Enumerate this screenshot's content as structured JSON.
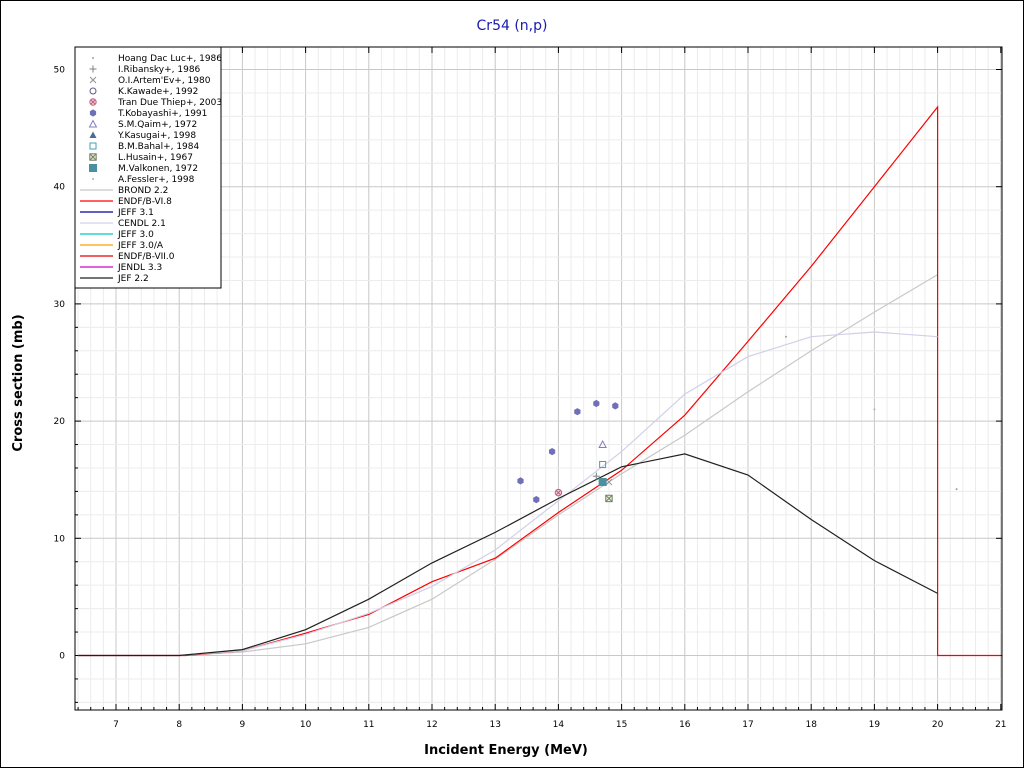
{
  "chart_data": {
    "type": "line",
    "title": "Cr54 (n,p)",
    "xlabel": "Incident Energy (MeV)",
    "ylabel": "Cross section (mb)",
    "xlim": [
      6.4,
      21
    ],
    "ylim": [
      -4.5,
      52
    ],
    "x_ticks": [
      7,
      8,
      9,
      10,
      11,
      12,
      13,
      14,
      15,
      16,
      17,
      18,
      19,
      20,
      21
    ],
    "y_ticks": [
      0,
      10,
      20,
      30,
      40,
      50
    ],
    "grid": true,
    "legend_position": "top-left",
    "experimental": [
      {
        "name": "Hoang Dac Luc+, 1986",
        "marker": "dot",
        "color": "#a0a0a0",
        "points": [
          [
            17.6,
            27.2
          ],
          [
            20.3,
            14.2
          ]
        ]
      },
      {
        "name": "I.Ribansky+, 1986",
        "marker": "plus",
        "color": "#808080",
        "points": [
          [
            14.6,
            15.3
          ]
        ]
      },
      {
        "name": "O.I.Artem'Ev+, 1980",
        "marker": "x",
        "color": "#909090",
        "points": [
          [
            14.8,
            14.8
          ]
        ]
      },
      {
        "name": "K.Kawade+, 1992",
        "marker": "circle-open",
        "color": "#5a5a8a",
        "points": [
          [
            14.0,
            13.9
          ]
        ]
      },
      {
        "name": "Tran Due Thiep+, 2003",
        "marker": "circle-x",
        "color": "#c06080",
        "points": [
          [
            14.0,
            13.9
          ]
        ]
      },
      {
        "name": "T.Kobayashi+, 1991",
        "marker": "hexagon-filled",
        "color": "#7070b8",
        "points": [
          [
            13.4,
            14.9
          ],
          [
            13.65,
            13.3
          ],
          [
            13.9,
            17.4
          ],
          [
            14.3,
            20.8
          ],
          [
            14.6,
            21.5
          ],
          [
            14.9,
            21.3
          ]
        ]
      },
      {
        "name": "S.M.Qaim+, 1972",
        "marker": "triangle-open",
        "color": "#8080c0",
        "points": [
          [
            14.7,
            18.0
          ]
        ]
      },
      {
        "name": "Y.Kasugai+, 1998",
        "marker": "triangle-filled",
        "color": "#4a6a9a",
        "points": []
      },
      {
        "name": "B.M.Bahal+, 1984",
        "marker": "square-open",
        "color": "#40a0b0",
        "points": [
          [
            14.7,
            16.3
          ]
        ]
      },
      {
        "name": "L.Husain+, 1967",
        "marker": "square-x",
        "color": "#708060",
        "points": [
          [
            14.8,
            13.4
          ]
        ]
      },
      {
        "name": "M.Valkonen, 1972",
        "marker": "square-filled",
        "color": "#4a90a0",
        "points": [
          [
            14.7,
            14.8
          ]
        ]
      },
      {
        "name": "A.Fessler+, 1998",
        "marker": "dot",
        "color": "#b0b0b0",
        "points": [
          [
            19.0,
            21.0
          ]
        ]
      }
    ],
    "series": [
      {
        "name": "BROND 2.2",
        "color": "#c8c8c8",
        "x": [
          6.4,
          8,
          9,
          10,
          11,
          12,
          13,
          14,
          15,
          16,
          17,
          18,
          19,
          20
        ],
        "y": [
          0,
          0,
          0.3,
          1.0,
          2.4,
          4.8,
          8.2,
          12.0,
          15.5,
          18.8,
          22.5,
          26.0,
          29.3,
          32.5
        ]
      },
      {
        "name": "ENDF/B-VI.8",
        "color": "#ff0000",
        "x": [
          6.4,
          8.1,
          9,
          10,
          11,
          12,
          13,
          14,
          15,
          16,
          17,
          18,
          19,
          20,
          20,
          21
        ],
        "y": [
          0,
          0,
          0.4,
          1.9,
          3.5,
          6.3,
          8.3,
          12.2,
          15.8,
          20.5,
          26.8,
          33.2,
          40.0,
          46.8,
          0,
          0
        ]
      },
      {
        "name": "JEFF 3.1",
        "color": "#0000a0",
        "x": [],
        "y": []
      },
      {
        "name": "CENDL 2.1",
        "color": "#d0d0e8",
        "x": [
          6.4,
          8,
          9,
          10,
          11,
          12,
          13,
          14,
          15,
          16,
          17,
          18,
          19,
          20
        ],
        "y": [
          0,
          0,
          0.4,
          1.8,
          3.6,
          5.9,
          9.0,
          13.2,
          17.4,
          22.3,
          25.5,
          27.2,
          27.6,
          27.2
        ]
      },
      {
        "name": "JEFF 3.0",
        "color": "#00c8c8",
        "x": [],
        "y": []
      },
      {
        "name": "JEFF 3.0/A",
        "color": "#ffa000",
        "x": [],
        "y": []
      },
      {
        "name": "ENDF/B-VII.0",
        "color": "#e00000",
        "x": [],
        "y": []
      },
      {
        "name": "JENDL 3.3",
        "color": "#d000d0",
        "x": [],
        "y": []
      },
      {
        "name": "JEF 2.2",
        "color": "#202020",
        "x": [
          6.4,
          8,
          9,
          10,
          11,
          12,
          13,
          14,
          15,
          16,
          17,
          18,
          19,
          20
        ],
        "y": [
          0,
          0,
          0.5,
          2.2,
          4.8,
          7.9,
          10.5,
          13.4,
          16.1,
          17.2,
          15.4,
          11.6,
          8.1,
          5.3
        ]
      }
    ]
  }
}
